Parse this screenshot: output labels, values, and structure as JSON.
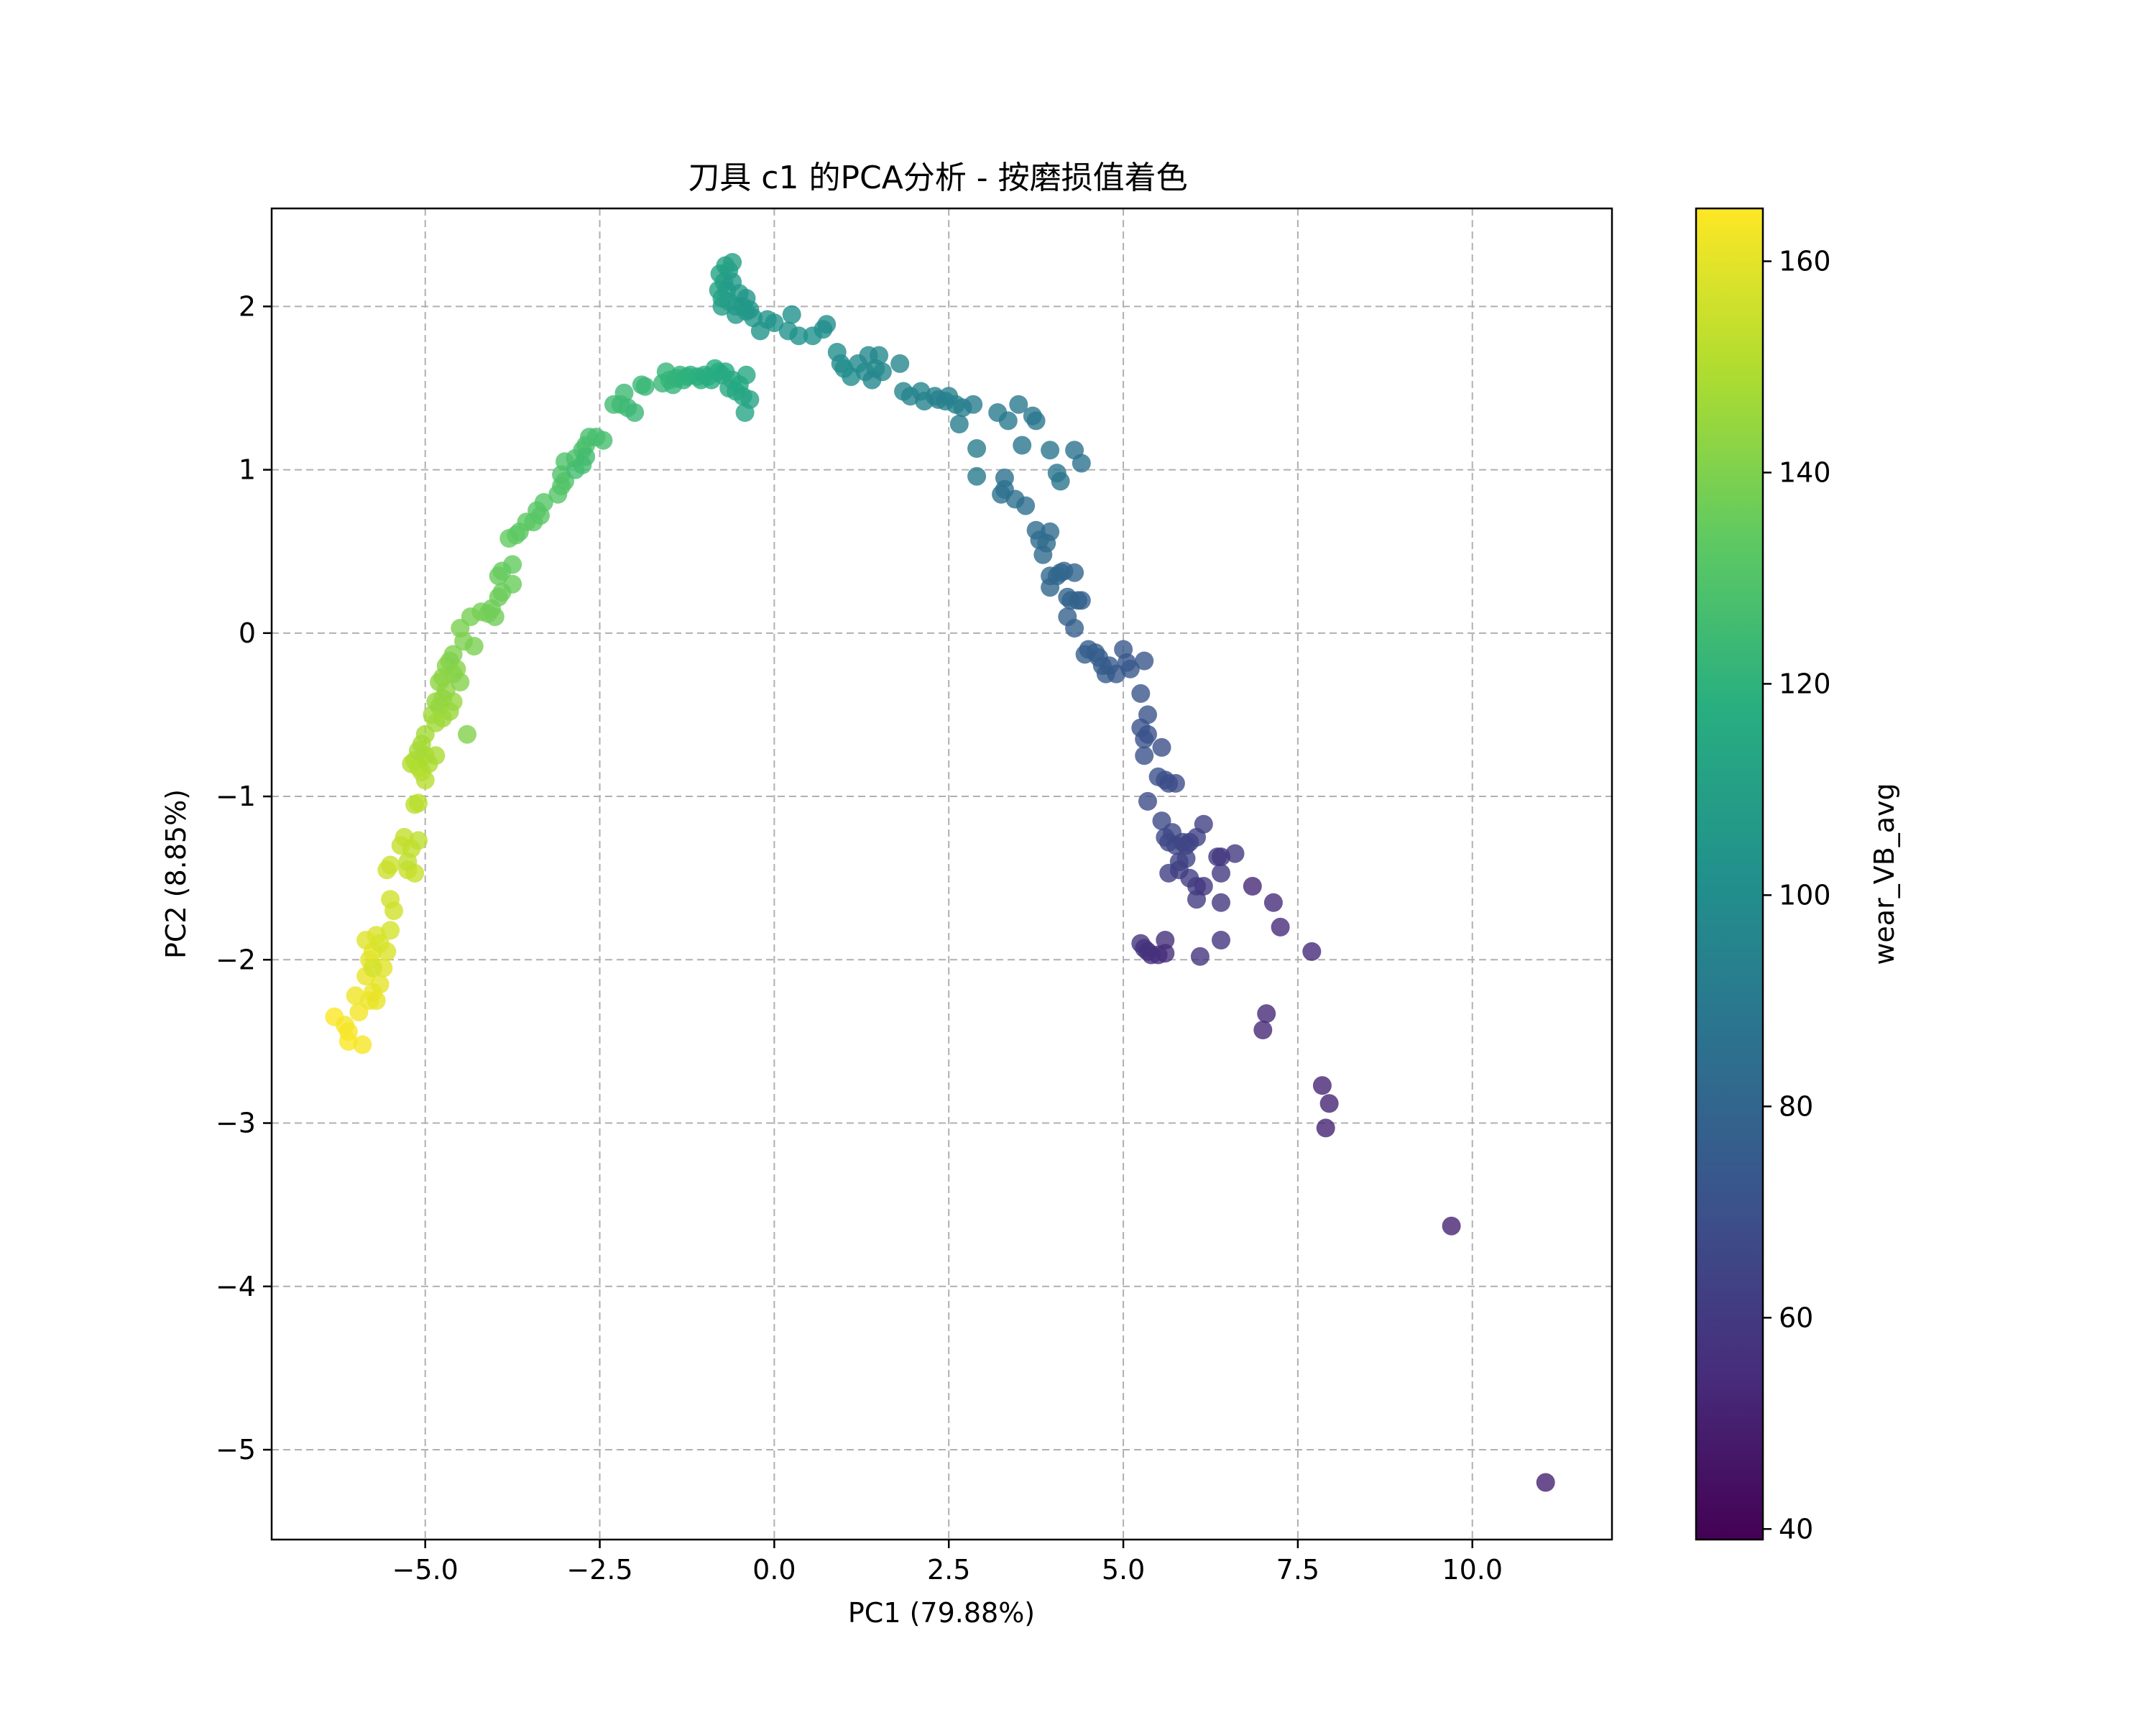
{
  "chart_data": {
    "type": "scatter",
    "title": "刀具 c1 的PCA分析 - 按磨损值着色",
    "xlabel": "PC1 (79.88%)",
    "ylabel": "PC2 (8.85%)",
    "xlim": [
      -7.2,
      12.0
    ],
    "ylim": [
      -5.55,
      2.6
    ],
    "xticks": [
      -5.0,
      -2.5,
      0.0,
      2.5,
      5.0,
      7.5,
      10.0
    ],
    "xtick_labels": [
      "−5.0",
      "−2.5",
      "0.0",
      "2.5",
      "5.0",
      "7.5",
      "10.0"
    ],
    "yticks": [
      -5,
      -4,
      -3,
      -2,
      -1,
      0,
      1,
      2
    ],
    "ytick_labels": [
      "−5",
      "−4",
      "−3",
      "−2",
      "−1",
      "0",
      "1",
      "2"
    ],
    "grid": true,
    "grid_style": "dashed",
    "colormap": "viridis",
    "point_alpha": 0.8,
    "colorbar": {
      "label": "wear_VB_avg",
      "range": [
        39.0,
        165.0
      ],
      "ticks": [
        40,
        60,
        80,
        100,
        120,
        140,
        160
      ]
    },
    "points": [
      [
        -6.3,
        -2.35,
        164.8
      ],
      [
        -6.1,
        -2.5,
        164.4
      ],
      [
        -6.1,
        -2.44,
        164
      ],
      [
        -5.9,
        -2.52,
        163.6
      ],
      [
        -6.15,
        -2.4,
        163.2
      ],
      [
        -5.95,
        -2.32,
        162.8
      ],
      [
        -6.0,
        -2.22,
        162.4
      ],
      [
        -5.8,
        -2.25,
        162
      ],
      [
        -5.75,
        -2.2,
        161.6
      ],
      [
        -5.85,
        -2.1,
        161.2
      ],
      [
        -5.7,
        -2.25,
        160.8
      ],
      [
        -5.65,
        -2.15,
        160.4
      ],
      [
        -5.8,
        -2.0,
        160
      ],
      [
        -5.75,
        -1.95,
        159.6
      ],
      [
        -5.6,
        -2.05,
        159.2
      ],
      [
        -5.85,
        -1.88,
        158.8
      ],
      [
        -5.7,
        -1.85,
        158.4
      ],
      [
        -5.55,
        -1.95,
        158
      ],
      [
        -5.65,
        -1.9,
        157.6
      ],
      [
        -5.5,
        -1.82,
        157.2
      ],
      [
        -5.75,
        -2.05,
        156.8
      ],
      [
        -5.45,
        -1.7,
        156.4
      ],
      [
        -5.5,
        -1.63,
        156
      ],
      [
        -5.55,
        -1.45,
        155.6
      ],
      [
        -5.5,
        -1.42,
        155.2
      ],
      [
        -5.25,
        -1.45,
        154.8
      ],
      [
        -5.15,
        -1.47,
        154.4
      ],
      [
        -5.35,
        -1.3,
        154
      ],
      [
        -5.3,
        -1.25,
        153.6
      ],
      [
        -5.2,
        -1.32,
        153.2
      ],
      [
        -5.25,
        -1.4,
        152.8
      ],
      [
        -5.1,
        -1.27,
        152.4
      ],
      [
        -5.15,
        -1.05,
        152
      ],
      [
        -5.1,
        -1.04,
        151.6
      ],
      [
        -5.0,
        -0.9,
        151.2
      ],
      [
        -5.05,
        -0.85,
        150.8
      ],
      [
        -5.1,
        -0.82,
        150.4
      ],
      [
        -5.2,
        -0.8,
        150
      ],
      [
        -5.15,
        -0.78,
        149.6
      ],
      [
        -4.95,
        -0.8,
        149.2
      ],
      [
        -5.0,
        -0.75,
        148.8
      ],
      [
        -4.85,
        -0.75,
        148.4
      ],
      [
        -5.1,
        -0.72,
        148
      ],
      [
        -5.05,
        -0.68,
        147.6
      ],
      [
        -5.0,
        -0.62,
        147.2
      ],
      [
        -4.85,
        -0.55,
        146.8
      ],
      [
        -4.9,
        -0.5,
        146.4
      ],
      [
        -4.75,
        -0.52,
        146
      ],
      [
        -4.8,
        -0.45,
        145.6
      ],
      [
        -4.65,
        -0.48,
        145.2
      ],
      [
        -4.6,
        -0.42,
        144.8
      ],
      [
        -4.75,
        -0.4,
        144.4
      ],
      [
        -4.85,
        -0.42,
        144
      ],
      [
        -4.7,
        -0.35,
        143.6
      ],
      [
        -4.8,
        -0.3,
        143.2
      ],
      [
        -4.75,
        -0.27,
        142.8
      ],
      [
        -4.6,
        -0.25,
        142.4
      ],
      [
        -4.7,
        -0.2,
        142
      ],
      [
        -4.55,
        -0.22,
        141.6
      ],
      [
        -4.5,
        -0.3,
        141.2
      ],
      [
        -4.65,
        -0.17,
        140.8
      ],
      [
        -4.4,
        -0.62,
        140.4
      ],
      [
        -4.6,
        -0.13,
        140
      ],
      [
        -4.45,
        -0.05,
        139.6
      ],
      [
        -4.5,
        0.03,
        139.2
      ],
      [
        -4.3,
        -0.08,
        138.8
      ],
      [
        -4.35,
        0.1,
        138.4
      ],
      [
        -4.2,
        0.13,
        138
      ],
      [
        -4.1,
        0.12,
        137.6
      ],
      [
        -4.0,
        0.1,
        137.2
      ],
      [
        -4.05,
        0.15,
        136.8
      ],
      [
        -3.95,
        0.22,
        136.4
      ],
      [
        -3.9,
        0.25,
        136
      ],
      [
        -3.75,
        0.3,
        135.6
      ],
      [
        -3.95,
        0.35,
        135.2
      ],
      [
        -3.9,
        0.38,
        134.8
      ],
      [
        -3.75,
        0.42,
        134.4
      ],
      [
        -3.8,
        0.58,
        134
      ],
      [
        -3.7,
        0.6,
        133.6
      ],
      [
        -3.65,
        0.62,
        133.2
      ],
      [
        -3.55,
        0.68,
        132.8
      ],
      [
        -3.45,
        0.68,
        132.4
      ],
      [
        -3.35,
        0.72,
        132
      ],
      [
        -3.4,
        0.75,
        131.6
      ],
      [
        -3.3,
        0.8,
        131.2
      ],
      [
        -3.1,
        0.85,
        130.8
      ],
      [
        -3.05,
        0.9,
        130.4
      ],
      [
        -3.0,
        0.93,
        130
      ],
      [
        -3.05,
        0.97,
        129.6
      ],
      [
        -3.0,
        1.05,
        129.2
      ],
      [
        -2.85,
        1.07,
        128.8
      ],
      [
        -2.75,
        1.12,
        128.4
      ],
      [
        -2.7,
        1.15,
        128
      ],
      [
        -2.65,
        1.2,
        127.6
      ],
      [
        -2.55,
        1.2,
        127.2
      ],
      [
        -2.45,
        1.18,
        126.8
      ],
      [
        -2.85,
        1.0,
        126.4
      ],
      [
        -2.75,
        1.03,
        126
      ],
      [
        -2.7,
        1.08,
        125.6
      ],
      [
        -2.3,
        1.4,
        125.2
      ],
      [
        -2.2,
        1.4,
        124.8
      ],
      [
        -2.15,
        1.47,
        124.4
      ],
      [
        -2.1,
        1.38,
        124
      ],
      [
        -1.9,
        1.52,
        123.6
      ],
      [
        -2.0,
        1.35,
        123.2
      ],
      [
        -1.85,
        1.51,
        122.8
      ],
      [
        -1.6,
        1.53,
        122.4
      ],
      [
        -1.55,
        1.6,
        122
      ],
      [
        -1.5,
        1.55,
        121.6
      ],
      [
        -1.45,
        1.52,
        121.2
      ],
      [
        -1.4,
        1.56,
        120.8
      ],
      [
        -1.35,
        1.58,
        120.4
      ],
      [
        -1.3,
        1.55,
        120
      ],
      [
        -1.25,
        1.57,
        119.6
      ],
      [
        -1.2,
        1.58,
        119.2
      ],
      [
        -1.1,
        1.57,
        118.8
      ],
      [
        -1.05,
        1.55,
        118.4
      ],
      [
        -1.0,
        1.58,
        118
      ],
      [
        -0.95,
        1.57,
        117.6
      ],
      [
        -0.9,
        1.55,
        117.2
      ],
      [
        -0.85,
        1.62,
        116.8
      ],
      [
        -0.8,
        1.6,
        116.4
      ],
      [
        -0.75,
        1.58,
        116
      ],
      [
        -0.7,
        1.6,
        115.6
      ],
      [
        -0.65,
        1.5,
        115.2
      ],
      [
        -0.6,
        1.55,
        114.8
      ],
      [
        -0.55,
        1.48,
        114.4
      ],
      [
        -0.5,
        1.52,
        114
      ],
      [
        -0.45,
        1.45,
        113.6
      ],
      [
        -0.4,
        1.58,
        113.2
      ],
      [
        -0.42,
        1.35,
        112.8
      ],
      [
        -0.35,
        1.43,
        112.4
      ],
      [
        -0.8,
        2.1,
        112
      ],
      [
        -0.75,
        2.05,
        111.6
      ],
      [
        -0.78,
        2.2,
        111.2
      ],
      [
        -0.7,
        2.25,
        110.8
      ],
      [
        -0.65,
        2.22,
        110.4
      ],
      [
        -0.6,
        2.27,
        110
      ],
      [
        -0.72,
        2.15,
        109.6
      ],
      [
        -0.68,
        2.1,
        109.2
      ],
      [
        -0.75,
        2.0,
        108.8
      ],
      [
        -0.65,
        2.03,
        108.4
      ],
      [
        -0.55,
        2.0,
        108
      ],
      [
        -0.6,
        2.15,
        107.6
      ],
      [
        -0.5,
        2.08,
        107.2
      ],
      [
        -0.45,
        2.0,
        106.8
      ],
      [
        -0.55,
        1.95,
        106.4
      ],
      [
        -0.4,
        1.97,
        106
      ],
      [
        -0.35,
        1.98,
        105.6
      ],
      [
        -0.3,
        1.93,
        105.2
      ],
      [
        -0.4,
        2.05,
        104.8
      ],
      [
        -0.2,
        1.85,
        104.4
      ],
      [
        -0.1,
        1.92,
        104
      ],
      [
        0.0,
        1.9,
        103.6
      ],
      [
        0.2,
        1.85,
        103.2
      ],
      [
        0.35,
        1.82,
        102.8
      ],
      [
        0.55,
        1.82,
        102.4
      ],
      [
        0.25,
        1.95,
        102
      ],
      [
        0.7,
        1.86,
        101.6
      ],
      [
        0.75,
        1.89,
        101.2
      ],
      [
        0.9,
        1.72,
        100.8
      ],
      [
        1.0,
        1.62,
        100.4
      ],
      [
        1.1,
        1.57,
        100
      ],
      [
        0.95,
        1.65,
        99.6
      ],
      [
        1.2,
        1.65,
        99.2
      ],
      [
        1.3,
        1.6,
        98.8
      ],
      [
        1.45,
        1.62,
        98.4
      ],
      [
        1.5,
        1.7,
        98
      ],
      [
        1.35,
        1.7,
        97.6
      ],
      [
        1.55,
        1.6,
        97.2
      ],
      [
        1.4,
        1.55,
        96.8
      ],
      [
        1.8,
        1.65,
        96.4
      ],
      [
        1.85,
        1.48,
        96
      ],
      [
        1.95,
        1.45,
        95.6
      ],
      [
        2.1,
        1.48,
        95.2
      ],
      [
        2.15,
        1.42,
        94.8
      ],
      [
        2.3,
        1.45,
        94.4
      ],
      [
        2.35,
        1.43,
        94
      ],
      [
        2.45,
        1.42,
        93.6
      ],
      [
        2.5,
        1.45,
        93.2
      ],
      [
        2.6,
        1.4,
        92.8
      ],
      [
        2.7,
        1.38,
        92.4
      ],
      [
        2.65,
        1.28,
        92
      ],
      [
        2.85,
        1.4,
        91.6
      ],
      [
        2.9,
        1.13,
        91.2
      ],
      [
        2.9,
        0.96,
        90.8
      ],
      [
        3.2,
        1.35,
        90.4
      ],
      [
        3.35,
        1.3,
        90
      ],
      [
        3.5,
        1.4,
        89.6
      ],
      [
        3.7,
        1.33,
        89.2
      ],
      [
        3.75,
        1.3,
        88.8
      ],
      [
        3.55,
        1.15,
        88.4
      ],
      [
        3.95,
        1.12,
        88
      ],
      [
        4.05,
        0.98,
        87.6
      ],
      [
        4.1,
        0.93,
        87.2
      ],
      [
        4.3,
        1.12,
        86.8
      ],
      [
        4.4,
        1.04,
        86.4
      ],
      [
        3.3,
        0.95,
        86
      ],
      [
        3.3,
        0.88,
        85.6
      ],
      [
        3.25,
        0.85,
        85.2
      ],
      [
        3.45,
        0.82,
        84.8
      ],
      [
        3.6,
        0.78,
        84.4
      ],
      [
        3.75,
        0.63,
        84
      ],
      [
        3.9,
        0.55,
        83.6
      ],
      [
        3.8,
        0.57,
        83.2
      ],
      [
        3.95,
        0.62,
        82.8
      ],
      [
        3.85,
        0.48,
        82.4
      ],
      [
        3.95,
        0.35,
        82
      ],
      [
        4.1,
        0.37,
        81.6
      ],
      [
        3.95,
        0.28,
        81.2
      ],
      [
        4.05,
        0.35,
        80.8
      ],
      [
        4.15,
        0.38,
        80.4
      ],
      [
        4.3,
        0.37,
        80
      ],
      [
        4.2,
        0.22,
        79.6
      ],
      [
        4.35,
        0.2,
        79.2
      ],
      [
        4.25,
        0.2,
        78.8
      ],
      [
        4.4,
        0.2,
        78.4
      ],
      [
        4.2,
        0.1,
        78
      ],
      [
        4.3,
        0.03,
        77.6
      ],
      [
        4.45,
        -0.13,
        77.2
      ],
      [
        4.6,
        -0.12,
        76.8
      ],
      [
        4.5,
        -0.1,
        76.4
      ],
      [
        4.65,
        -0.15,
        76
      ],
      [
        4.7,
        -0.2,
        75.6
      ],
      [
        4.75,
        -0.25,
        75.2
      ],
      [
        4.8,
        -0.2,
        74.8
      ],
      [
        4.9,
        -0.25,
        74.4
      ],
      [
        5.0,
        -0.1,
        74
      ],
      [
        5.05,
        -0.18,
        73.6
      ],
      [
        5.1,
        -0.22,
        73.2
      ],
      [
        5.3,
        -0.17,
        72.8
      ],
      [
        5.25,
        -0.37,
        72.4
      ],
      [
        5.35,
        -0.5,
        72
      ],
      [
        5.25,
        -0.58,
        71.6
      ],
      [
        5.3,
        -0.65,
        71.2
      ],
      [
        5.35,
        -0.62,
        70.8
      ],
      [
        5.3,
        -0.75,
        70.4
      ],
      [
        5.5,
        -0.88,
        70
      ],
      [
        5.6,
        -0.9,
        69.6
      ],
      [
        5.55,
        -0.7,
        69.2
      ],
      [
        5.65,
        -0.92,
        68.8
      ],
      [
        5.75,
        -0.92,
        68.4
      ],
      [
        5.35,
        -1.03,
        68
      ],
      [
        5.55,
        -1.15,
        67.6
      ],
      [
        5.6,
        -1.25,
        67.2
      ],
      [
        5.65,
        -1.28,
        66.8
      ],
      [
        5.7,
        -1.22,
        66.4
      ],
      [
        5.75,
        -1.3,
        66
      ],
      [
        5.85,
        -1.28,
        65.6
      ],
      [
        5.9,
        -1.3,
        65.2
      ],
      [
        5.95,
        -1.28,
        64.8
      ],
      [
        5.8,
        -1.4,
        64.4
      ],
      [
        5.9,
        -1.38,
        64
      ],
      [
        6.05,
        -1.25,
        63.6
      ],
      [
        6.15,
        -1.17,
        63.2
      ],
      [
        5.65,
        -1.47,
        62.8
      ],
      [
        5.8,
        -1.45,
        62.4
      ],
      [
        5.95,
        -1.5,
        62
      ],
      [
        6.05,
        -1.55,
        61.6
      ],
      [
        6.05,
        -1.63,
        61.2
      ],
      [
        6.35,
        -1.37,
        60.8
      ],
      [
        6.4,
        -1.47,
        60.4
      ],
      [
        6.6,
        -1.35,
        60
      ],
      [
        6.4,
        -1.37,
        59.6
      ],
      [
        6.15,
        -1.55,
        59.2
      ],
      [
        6.4,
        -1.65,
        58.8
      ],
      [
        6.4,
        -1.88,
        58.4
      ],
      [
        6.1,
        -1.98,
        58
      ],
      [
        5.25,
        -1.9,
        57.6
      ],
      [
        5.3,
        -1.93,
        57.2
      ],
      [
        5.35,
        -1.95,
        56.8
      ],
      [
        5.4,
        -1.97,
        56.4
      ],
      [
        5.5,
        -1.97,
        56
      ],
      [
        5.6,
        -1.88,
        55.6
      ],
      [
        5.6,
        -1.96,
        55.2
      ],
      [
        7.15,
        -1.65,
        54.8
      ],
      [
        7.25,
        -1.8,
        54.4
      ],
      [
        7.7,
        -1.95,
        54
      ],
      [
        7.05,
        -2.33,
        53.6
      ],
      [
        7.0,
        -2.43,
        53.2
      ],
      [
        6.85,
        -1.55,
        52.8
      ],
      [
        7.85,
        -2.77,
        52.4
      ],
      [
        7.95,
        -2.88,
        52
      ],
      [
        7.9,
        -3.03,
        51.6
      ],
      [
        9.7,
        -3.63,
        51.2
      ],
      [
        11.05,
        -5.2,
        50.8
      ]
    ]
  }
}
